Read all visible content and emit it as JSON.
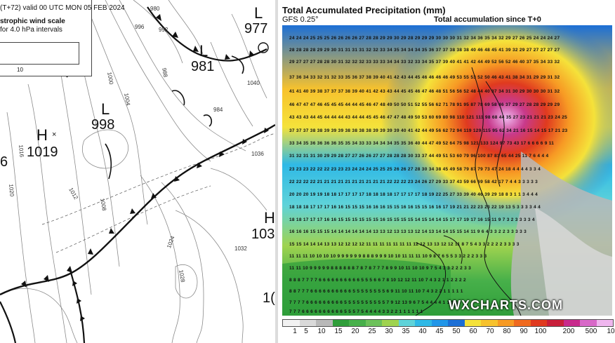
{
  "synoptic_chart": {
    "legend": {
      "header": "(T+72) valid 00 UTC MON 05  FEB 2024",
      "title": "strophic wind scale",
      "interval_text": "for 4.0 hPa intervals",
      "scale_value": "10"
    },
    "pressure_systems": [
      {
        "type": "L",
        "value": "977"
      },
      {
        "type": "L",
        "value": "981"
      },
      {
        "type": "L",
        "value": "998"
      },
      {
        "type": "H",
        "value": "1019"
      },
      {
        "type": "H",
        "value": "103"
      },
      {
        "type": "",
        "value": "6"
      },
      {
        "type": "",
        "value": "1("
      }
    ],
    "isobar_labels": [
      "996",
      "992",
      "1000",
      "1004",
      "1008",
      "1012",
      "1016",
      "1020",
      "1024",
      "1028",
      "1032",
      "1036",
      "1040",
      "988",
      "984",
      "980"
    ]
  },
  "precip_chart": {
    "title": "Total Accumulated Precipitation (mm)",
    "model": "GFS 0.25°",
    "accumulation": "Total accumulation since T+0",
    "watermark": "WXCHARTS.COM",
    "grid_rows": [
      "24 24 24 25 25 25 26 26 26 26 27 28 28 29 29 30 29 28 29 29 29 30 30 30 31 32 34 36 35 34 32 29 27 26 25 24 24 24 27",
      "28 28 28 28 29 29 30 31 31 31 31 32 32 33 34 35 34 34 34 35 36 37 37 38 38 38 40 46 48 45 41 39 32 29 27 27 27 27 27",
      "29 27 27 27 28 28 30 31 32 32 32 33 33 33 34 34 33 32 33 34 35 37 39 40 41 41 42 44 49 52 56 52 46 40 37 35 34 33 32",
      "37 36 34 33 32 31 32 33 35 36 37 38 39 40 41 42 43 44 45 46 46 46 46 49 53 55 53 52 50 46 43 41 38 34 31 29 29 31 32",
      "41 41 40 39 38 37 37 37 38 39 40 41 42 43 43 44 45 45 46 47 46 48 51 56 56 52 48 44 40 37 34 31 30 29 30 30 30 31 32",
      "46 47 47 47 46 45 45 45 44 44 45 46 47 48 49 50 50 51 52 55 56 62 71 78 91 95 87 78 69 58 46 37 29 27 28 28 29 29 29",
      "43 43 43 44 45 44 44 44 43 44 44 45 45 46 47 47 48 49 50 53 60 69 80 98 110 121 111 98 68 44 35 27 23 21 21 21 23 24 25",
      "37 37 37 38 38 39 39 39 38 38 38 38 39 39 39 39 40 41 42 44 49 56 62 72 94 119 129 115 95 62 34 21 16 15 14 15 17 21 23",
      "33 34 35 36 36 36 36 35 35 34 33 33 34 34 34 35 35 36 40 44 47 49 52 64 75 98 121 133 124 97 73 43 17 6 6 6 6 9 11",
      "31 32 31 31 30 29 29 28 27 27 26 26 27 27 28 28 28 30 33 37 44 49 51 53 60 79 96 100 87 83 65 44 25 11 7 6 4 4 4",
      "23 23 23 22 22 22 23 23 23 24 24 24 25 25 25 26 26 27 28 30 34 38 45 49 58 79 87 79 73 47 24 18 4 4 4 4 3 3 4",
      "22 22 22 22 21 21 21 21 21 21 21 21 21 21 22 22 22 23 24 26 27 29 33 37 43 59 66 69 58 42 17 7 4 4 3 3 3 3 3",
      "20 20 20 19 19 18 18 17 17 17 17 18 18 18 18 17 17 17 17 18 19 22 25 27 33 39 40 46 39 29 18 8 3 1 1 3 4 4 4",
      "18 18 18 17 17 17 16 16 15 15 15 16 16 16 15 15 16 16 15 15 16 16 17 19 21 21 22 23 23 22 19 13 5 3 3 3 3 4 4",
      "18 18 17 17 17 16 16 15 15 15 15 15 15 16 15 15 15 15 14 15 14 14 15 17 17 19 17 16 15 11 9 7 3 2 3 3 3 3 4",
      "16 16 16 15 15 15 14 14 14 14 14 14 13 13 12 13 13 13 12 14 13 14 14 15 15 14 11 9 6 4 3 3 2 2 3 3 3 3 3",
      "15 15 14 14 14 13 13 12 12 12 12 11 11 11 11 11 11 11 12 12 13 13 12 12 11 8 7 5 4 3 3 2 2 2 2 3 3 3 3",
      "11 11 11 10 10 10 10 9 9 9 9 9 9 8 8 8 9 9 9 10 10 11 11 11 10 9 8 7 6 5 5 3 3 2 2 2 3 3 3",
      "11 11 10 9 9 9 9 9 8 8 8 8 8 8 7 8 7 8 7 7 7 8 9 9 10 11 10 10 9 7 5 4 3 3 2 2 2 3 3",
      "8 8 8 7 7 7 7 6 6 6 6 6 6 6 6 6 6 5 5 5 6 6 7 8 10 12 12 11 10 7 4 3 2 1 1 2 2 2 2",
      "8 8 7 7 7 6 6 6 6 6 6 6 6 6 6 5 5 5 5 5 5 5 5 6 9 11 10 11 10 7 4 3 2 2 1 1 1 1 1",
      "7 7 7 7 6 6 6 6 6 6 6 6 6 5 5 5 5 5 5 5 5 5 5 7 9 12 13 9 6 7 5 4 4 4 4 1 1 1 1",
      "7 7 7 6 6 6 6 6 6 6 6 6 6 5 5 5 7 5 4 4 4 4 3 3 2 2 1 1 1 1 1 1",
      "5 5 5 5 5 5 5 5 5 5 5 4 4 4 4 4 3 2 2 2 2 1 1 1 1 1 1 2 2"
    ],
    "colorbar_labels": [
      "1",
      "5",
      "10",
      "15",
      "20",
      "25",
      "30",
      "35",
      "40",
      "45",
      "50",
      "60",
      "70",
      "80",
      "90",
      "100",
      "200",
      "500",
      "10"
    ],
    "colorbar_colors": [
      "#f2f2f2",
      "#d9d9d9",
      "#b8b8b8",
      "#2f9e3a",
      "#47b04a",
      "#6cc15a",
      "#9fd34f",
      "#5fd3d9",
      "#2fb9e6",
      "#2196e8",
      "#1c6fd6",
      "#f5e23a",
      "#f7c22d",
      "#f79a24",
      "#ef6a1f",
      "#e03a1f",
      "#c81f3a",
      "#c82a8c",
      "#d869c8",
      "#efb6ee"
    ]
  }
}
